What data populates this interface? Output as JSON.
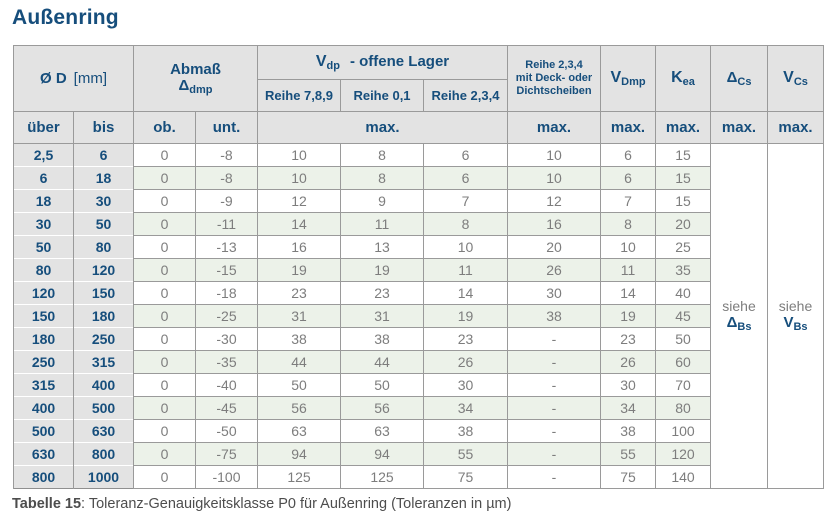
{
  "page": {
    "title": "Außenring",
    "caption": {
      "bold": "Tabelle 15",
      "rest": ": Toleranz-Genauigkeitsklasse P0 für Außenring (Toleranzen in µm)"
    }
  },
  "colors": {
    "accent_navy": "#164e7c",
    "header_bg": "#e3e3e3",
    "stripe_green": "#ecf2e9",
    "value_text": "#7d7d7d",
    "border_gray": "#9a9a9a"
  },
  "table": {
    "header": {
      "diameter": {
        "main": "Ø D",
        "unit": "[mm]"
      },
      "abmass": {
        "line1": "Abmaß",
        "sym": "Δ",
        "sub": "dmp"
      },
      "vdp_group": {
        "sym": "V",
        "sub": "dp",
        "rest": "-  offene Lager"
      },
      "reihe_789": "Reihe 7,8,9",
      "reihe_01": "Reihe 0,1",
      "reihe_234": "Reihe 2,3,4",
      "deck": {
        "line1": "Reihe 2,3,4",
        "line2": "mit Deck- oder",
        "line3": "Dichtscheiben"
      },
      "vdmp": {
        "sym": "V",
        "sub": "Dmp"
      },
      "kea": {
        "sym": "K",
        "sub": "ea"
      },
      "delta_cs": {
        "sym": "Δ",
        "sub": "Cs"
      },
      "vcs": {
        "sym": "V",
        "sub": "Cs"
      },
      "ueber": "über",
      "bis": "bis",
      "ob": "ob.",
      "unt": "unt.",
      "max": "max."
    },
    "see_delta_bs": {
      "word": "siehe",
      "sym": "Δ",
      "sub": "Bs"
    },
    "see_v_bs": {
      "word": "siehe",
      "sym": "V",
      "sub": "Bs"
    },
    "rows": [
      [
        "2,5",
        "6",
        "0",
        "-8",
        "10",
        "8",
        "6",
        "10",
        "6",
        "15"
      ],
      [
        "6",
        "18",
        "0",
        "-8",
        "10",
        "8",
        "6",
        "10",
        "6",
        "15"
      ],
      [
        "18",
        "30",
        "0",
        "-9",
        "12",
        "9",
        "7",
        "12",
        "7",
        "15"
      ],
      [
        "30",
        "50",
        "0",
        "-11",
        "14",
        "11",
        "8",
        "16",
        "8",
        "20"
      ],
      [
        "50",
        "80",
        "0",
        "-13",
        "16",
        "13",
        "10",
        "20",
        "10",
        "25"
      ],
      [
        "80",
        "120",
        "0",
        "-15",
        "19",
        "19",
        "11",
        "26",
        "11",
        "35"
      ],
      [
        "120",
        "150",
        "0",
        "-18",
        "23",
        "23",
        "14",
        "30",
        "14",
        "40"
      ],
      [
        "150",
        "180",
        "0",
        "-25",
        "31",
        "31",
        "19",
        "38",
        "19",
        "45"
      ],
      [
        "180",
        "250",
        "0",
        "-30",
        "38",
        "38",
        "23",
        "-",
        "23",
        "50"
      ],
      [
        "250",
        "315",
        "0",
        "-35",
        "44",
        "44",
        "26",
        "-",
        "26",
        "60"
      ],
      [
        "315",
        "400",
        "0",
        "-40",
        "50",
        "50",
        "30",
        "-",
        "30",
        "70"
      ],
      [
        "400",
        "500",
        "0",
        "-45",
        "56",
        "56",
        "34",
        "-",
        "34",
        "80"
      ],
      [
        "500",
        "630",
        "0",
        "-50",
        "63",
        "63",
        "38",
        "-",
        "38",
        "100"
      ],
      [
        "630",
        "800",
        "0",
        "-75",
        "94",
        "94",
        "55",
        "-",
        "55",
        "120"
      ],
      [
        "800",
        "1000",
        "0",
        "-100",
        "125",
        "125",
        "75",
        "-",
        "75",
        "140"
      ]
    ]
  }
}
